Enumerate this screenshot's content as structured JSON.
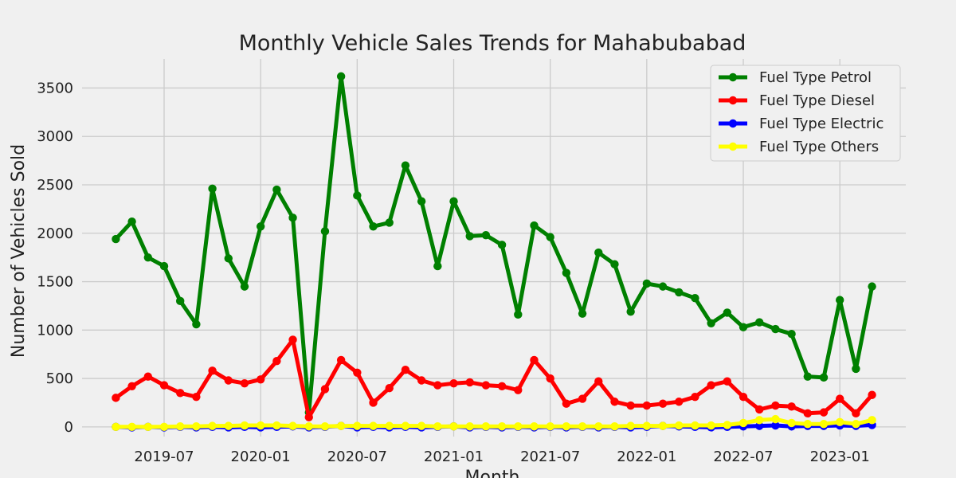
{
  "chart_data": {
    "type": "line",
    "title": "Monthly Vehicle Sales Trends for Mahabubabad",
    "xlabel": "Month",
    "ylabel": "Number of Vehicles Sold",
    "x": [
      "2019-04",
      "2019-05",
      "2019-06",
      "2019-07",
      "2019-08",
      "2019-09",
      "2019-10",
      "2019-11",
      "2019-12",
      "2020-01",
      "2020-02",
      "2020-03",
      "2020-04",
      "2020-05",
      "2020-06",
      "2020-07",
      "2020-08",
      "2020-09",
      "2020-10",
      "2020-11",
      "2020-12",
      "2021-01",
      "2021-02",
      "2021-03",
      "2021-04",
      "2021-05",
      "2021-06",
      "2021-07",
      "2021-08",
      "2021-09",
      "2021-10",
      "2021-11",
      "2021-12",
      "2022-01",
      "2022-02",
      "2022-03",
      "2022-04",
      "2022-05",
      "2022-06",
      "2022-07",
      "2022-08",
      "2022-09",
      "2022-10",
      "2022-11",
      "2022-12",
      "2023-01",
      "2023-02",
      "2023-03"
    ],
    "x_ticks": [
      "2019-07",
      "2020-01",
      "2020-07",
      "2021-01",
      "2021-07",
      "2022-01",
      "2022-07",
      "2023-01"
    ],
    "y_ticks": [
      0,
      500,
      1000,
      1500,
      2000,
      2500,
      3000,
      3500
    ],
    "ylim": [
      -100,
      3800
    ],
    "grid": true,
    "legend_position": "top-right",
    "series": [
      {
        "name": "Fuel Type Petrol",
        "color": "#008000",
        "values": [
          1940,
          2120,
          1750,
          1660,
          1300,
          1060,
          2460,
          1740,
          1450,
          2070,
          2450,
          2160,
          150,
          2020,
          3620,
          2390,
          2070,
          2110,
          2700,
          2330,
          1660,
          2330,
          1970,
          1980,
          1880,
          1160,
          2080,
          1960,
          1590,
          1170,
          1800,
          1680,
          1190,
          1480,
          1450,
          1390,
          1330,
          1070,
          1180,
          1030,
          1080,
          1010,
          960,
          520,
          510,
          1310,
          600,
          1450
        ]
      },
      {
        "name": "Fuel Type Diesel",
        "color": "#ff0000",
        "values": [
          300,
          420,
          520,
          430,
          350,
          310,
          580,
          480,
          450,
          490,
          680,
          900,
          100,
          390,
          690,
          560,
          250,
          400,
          590,
          480,
          430,
          450,
          460,
          430,
          420,
          380,
          690,
          500,
          240,
          290,
          470,
          260,
          220,
          220,
          240,
          260,
          310,
          430,
          470,
          310,
          180,
          220,
          210,
          140,
          150,
          290,
          140,
          330
        ]
      },
      {
        "name": "Fuel Type Electric",
        "color": "#0000ff",
        "values": [
          0,
          -5,
          0,
          -5,
          0,
          -5,
          0,
          -5,
          0,
          -5,
          0,
          5,
          -5,
          0,
          10,
          -5,
          0,
          -5,
          0,
          -5,
          0,
          5,
          -5,
          0,
          -5,
          0,
          -5,
          0,
          -5,
          0,
          -5,
          0,
          -5,
          0,
          10,
          5,
          0,
          -5,
          0,
          5,
          10,
          15,
          5,
          10,
          10,
          15,
          10,
          20
        ]
      },
      {
        "name": "Fuel Type Others",
        "color": "#ffff00",
        "values": [
          0,
          0,
          0,
          0,
          5,
          5,
          10,
          10,
          15,
          15,
          15,
          10,
          5,
          5,
          10,
          10,
          10,
          10,
          10,
          10,
          5,
          5,
          5,
          5,
          5,
          5,
          5,
          5,
          5,
          5,
          5,
          5,
          10,
          10,
          10,
          15,
          15,
          15,
          20,
          40,
          70,
          80,
          40,
          30,
          30,
          50,
          30,
          70
        ]
      }
    ]
  }
}
